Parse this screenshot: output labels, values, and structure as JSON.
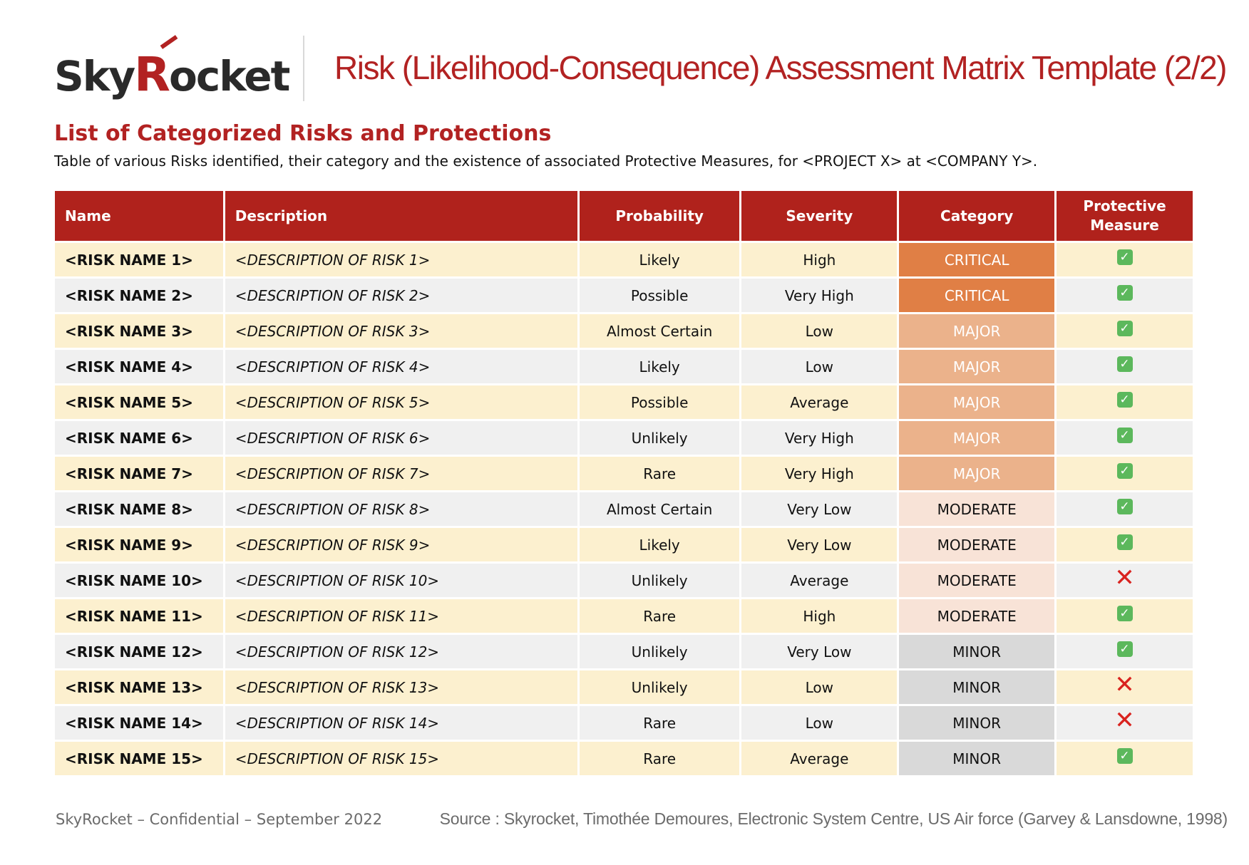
{
  "header": {
    "logo_text_prefix": "Sky",
    "logo_text_r": "R",
    "logo_text_suffix": "ocket",
    "title": "Risk (Likelihood-Consequence) Assessment Matrix Template (2/2)"
  },
  "section": {
    "title": "List of Categorized Risks and Protections",
    "subtitle": "Table of various Risks identified, their category and the existence of associated Protective Measures, for <PROJECT X> at <COMPANY Y>."
  },
  "table": {
    "columns": {
      "name": "Name",
      "description": "Description",
      "probability": "Probability",
      "severity": "Severity",
      "category": "Category",
      "protective_line1": "Protective",
      "protective_line2": "Measure"
    },
    "rows": [
      {
        "name": "<RISK NAME 1>",
        "description": "<DESCRIPTION OF RISK 1>",
        "probability": "Likely",
        "severity": "High",
        "category": "CRITICAL",
        "protective": true
      },
      {
        "name": "<RISK NAME 2>",
        "description": "<DESCRIPTION OF RISK 2>",
        "probability": "Possible",
        "severity": "Very High",
        "category": "CRITICAL",
        "protective": true
      },
      {
        "name": "<RISK NAME 3>",
        "description": "<DESCRIPTION OF RISK 3>",
        "probability": "Almost Certain",
        "severity": "Low",
        "category": "MAJOR",
        "protective": true
      },
      {
        "name": "<RISK NAME 4>",
        "description": "<DESCRIPTION OF RISK 4>",
        "probability": "Likely",
        "severity": "Low",
        "category": "MAJOR",
        "protective": true
      },
      {
        "name": "<RISK NAME 5>",
        "description": "<DESCRIPTION OF RISK 5>",
        "probability": "Possible",
        "severity": "Average",
        "category": "MAJOR",
        "protective": true
      },
      {
        "name": "<RISK NAME 6>",
        "description": "<DESCRIPTION OF RISK 6>",
        "probability": "Unlikely",
        "severity": "Very High",
        "category": "MAJOR",
        "protective": true
      },
      {
        "name": "<RISK NAME 7>",
        "description": "<DESCRIPTION OF RISK 7>",
        "probability": "Rare",
        "severity": "Very High",
        "category": "MAJOR",
        "protective": true
      },
      {
        "name": "<RISK NAME 8>",
        "description": "<DESCRIPTION OF RISK 8>",
        "probability": "Almost Certain",
        "severity": "Very Low",
        "category": "MODERATE",
        "protective": true
      },
      {
        "name": "<RISK NAME 9>",
        "description": "<DESCRIPTION OF RISK 9>",
        "probability": "Likely",
        "severity": "Very Low",
        "category": "MODERATE",
        "protective": true
      },
      {
        "name": "<RISK NAME 10>",
        "description": "<DESCRIPTION OF RISK 10>",
        "probability": "Unlikely",
        "severity": "Average",
        "category": "MODERATE",
        "protective": false
      },
      {
        "name": "<RISK NAME 11>",
        "description": "<DESCRIPTION OF RISK 11>",
        "probability": "Rare",
        "severity": "High",
        "category": "MODERATE",
        "protective": true
      },
      {
        "name": "<RISK NAME 12>",
        "description": "<DESCRIPTION OF RISK 12>",
        "probability": "Unlikely",
        "severity": "Very Low",
        "category": "MINOR",
        "protective": true
      },
      {
        "name": "<RISK NAME 13>",
        "description": "<DESCRIPTION OF RISK 13>",
        "probability": "Unlikely",
        "severity": "Low",
        "category": "MINOR",
        "protective": false
      },
      {
        "name": "<RISK NAME 14>",
        "description": "<DESCRIPTION OF RISK 14>",
        "probability": "Rare",
        "severity": "Low",
        "category": "MINOR",
        "protective": false
      },
      {
        "name": "<RISK NAME 15>",
        "description": "<DESCRIPTION OF RISK 15>",
        "probability": "Rare",
        "severity": "Average",
        "category": "MINOR",
        "protective": true
      }
    ]
  },
  "icons": {
    "protective_yes": "check-icon",
    "protective_no": "cross-icon"
  },
  "colors": {
    "brand_red": "#b22222",
    "header_bg": "#b0221c",
    "critical": "#e07f45",
    "major": "#ebb28b",
    "moderate": "#f8e3d7",
    "minor": "#d9d9d9",
    "row_odd": "#fcf0cf",
    "row_even": "#f0f0f0"
  },
  "footer": {
    "left": "SkyRocket – Confidential – September 2022",
    "right": "Source : Skyrocket, Timothée Demoures, Electronic System Centre, US Air force (Garvey & Lansdowne, 1998)"
  }
}
